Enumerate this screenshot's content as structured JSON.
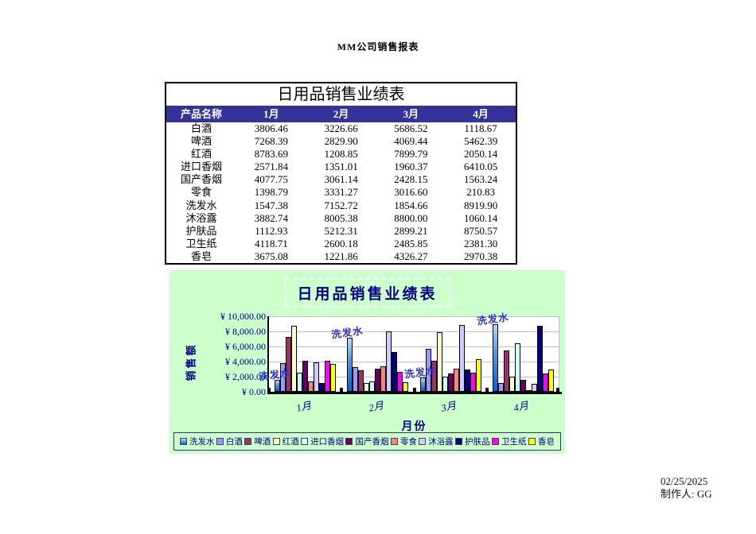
{
  "page": {
    "title": "MM公司销售报表"
  },
  "colors": {
    "table_header_bg": "#333399",
    "table_header_text": "#ffffff",
    "chart_bg": "#ccffcc",
    "chart_text": "#000080",
    "annotation_text": "#3333cc",
    "gridline": "#c0c0c0"
  },
  "table": {
    "title": "日用品销售业绩表",
    "headers": [
      "产品名称",
      "1月",
      "2月",
      "3月",
      "4月"
    ],
    "rows": [
      {
        "name": "白酒",
        "values": [
          "3806.46",
          "3226.66",
          "5686.52",
          "1118.67"
        ]
      },
      {
        "name": "啤酒",
        "values": [
          "7268.39",
          "2829.90",
          "4069.44",
          "5462.39"
        ]
      },
      {
        "name": "红酒",
        "values": [
          "8783.69",
          "1208.85",
          "7899.79",
          "2050.14"
        ]
      },
      {
        "name": "进口香烟",
        "values": [
          "2571.84",
          "1351.01",
          "1960.37",
          "6410.05"
        ]
      },
      {
        "name": "国产香烟",
        "values": [
          "4077.75",
          "3061.14",
          "2428.15",
          "1563.24"
        ]
      },
      {
        "name": "零食",
        "values": [
          "1398.79",
          "3331.27",
          "3016.60",
          "210.83"
        ]
      },
      {
        "name": "洗发水",
        "values": [
          "1547.38",
          "7152.72",
          "1854.66",
          "8919.90"
        ]
      },
      {
        "name": "沐浴露",
        "values": [
          "3882.74",
          "8005.38",
          "8800.00",
          "1060.14"
        ]
      },
      {
        "name": "护肤品",
        "values": [
          "1112.93",
          "5212.31",
          "2899.21",
          "8750.57"
        ]
      },
      {
        "name": "卫生纸",
        "values": [
          "4118.71",
          "2600.18",
          "2485.85",
          "2381.30"
        ]
      },
      {
        "name": "香皂",
        "values": [
          "3675.08",
          "1221.86",
          "4326.27",
          "2970.38"
        ]
      }
    ]
  },
  "chart_data": {
    "type": "bar",
    "title": "日用品销售业绩表",
    "xlabel": "月份",
    "ylabel": "销售额",
    "categories": [
      "1月",
      "2月",
      "3月",
      "4月"
    ],
    "ylim": [
      0,
      10000
    ],
    "ytick_labels": [
      "¥ 0.00",
      "¥ 2,000.00",
      "¥ 4,000.00",
      "¥ 6,000.00",
      "¥ 8,000.00",
      "¥ 10,000.00"
    ],
    "grid": true,
    "legend_position": "bottom",
    "series": [
      {
        "name": "洗发水",
        "color": "#0066cc",
        "color_light": "#b3dbf7",
        "values": [
          1547.38,
          7152.72,
          1854.66,
          8919.9
        ]
      },
      {
        "name": "白酒",
        "color": "#9999ff",
        "values": [
          3806.46,
          3226.66,
          5686.52,
          1118.67
        ]
      },
      {
        "name": "啤酒",
        "color": "#993366",
        "values": [
          7268.39,
          2829.9,
          4069.44,
          5462.39
        ]
      },
      {
        "name": "红酒",
        "color": "#ffffcc",
        "values": [
          8783.69,
          1208.85,
          7899.79,
          2050.14
        ]
      },
      {
        "name": "进口香烟",
        "color": "#ccffff",
        "values": [
          2571.84,
          1351.01,
          1960.37,
          6410.05
        ]
      },
      {
        "name": "国产香烟",
        "color": "#660066",
        "values": [
          4077.75,
          3061.14,
          2428.15,
          1563.24
        ]
      },
      {
        "name": "零食",
        "color": "#ff8080",
        "values": [
          1398.79,
          3331.27,
          3016.6,
          210.83
        ]
      },
      {
        "name": "沐浴露",
        "color": "#ccccff",
        "values": [
          3882.74,
          8005.38,
          8800.0,
          1060.14
        ]
      },
      {
        "name": "护肤品",
        "color": "#000080",
        "values": [
          1112.93,
          5212.31,
          2899.21,
          8750.57
        ]
      },
      {
        "name": "卫生纸",
        "color": "#ff00ff",
        "values": [
          4118.71,
          2600.18,
          2485.85,
          2381.3
        ]
      },
      {
        "name": "香皂",
        "color": "#ffff00",
        "values": [
          3675.08,
          1221.86,
          4326.27,
          2970.38
        ]
      }
    ],
    "annotations": [
      {
        "text": "洗发水",
        "series": "洗发水",
        "category": "1月"
      },
      {
        "text": "洗发水",
        "series": "洗发水",
        "category": "2月"
      },
      {
        "text": "洗发水",
        "series": "洗发水",
        "category": "3月"
      },
      {
        "text": "洗发水",
        "series": "洗发水",
        "category": "4月"
      }
    ]
  },
  "footer": {
    "date": "02/25/2025",
    "maker": "制作人: GG"
  }
}
